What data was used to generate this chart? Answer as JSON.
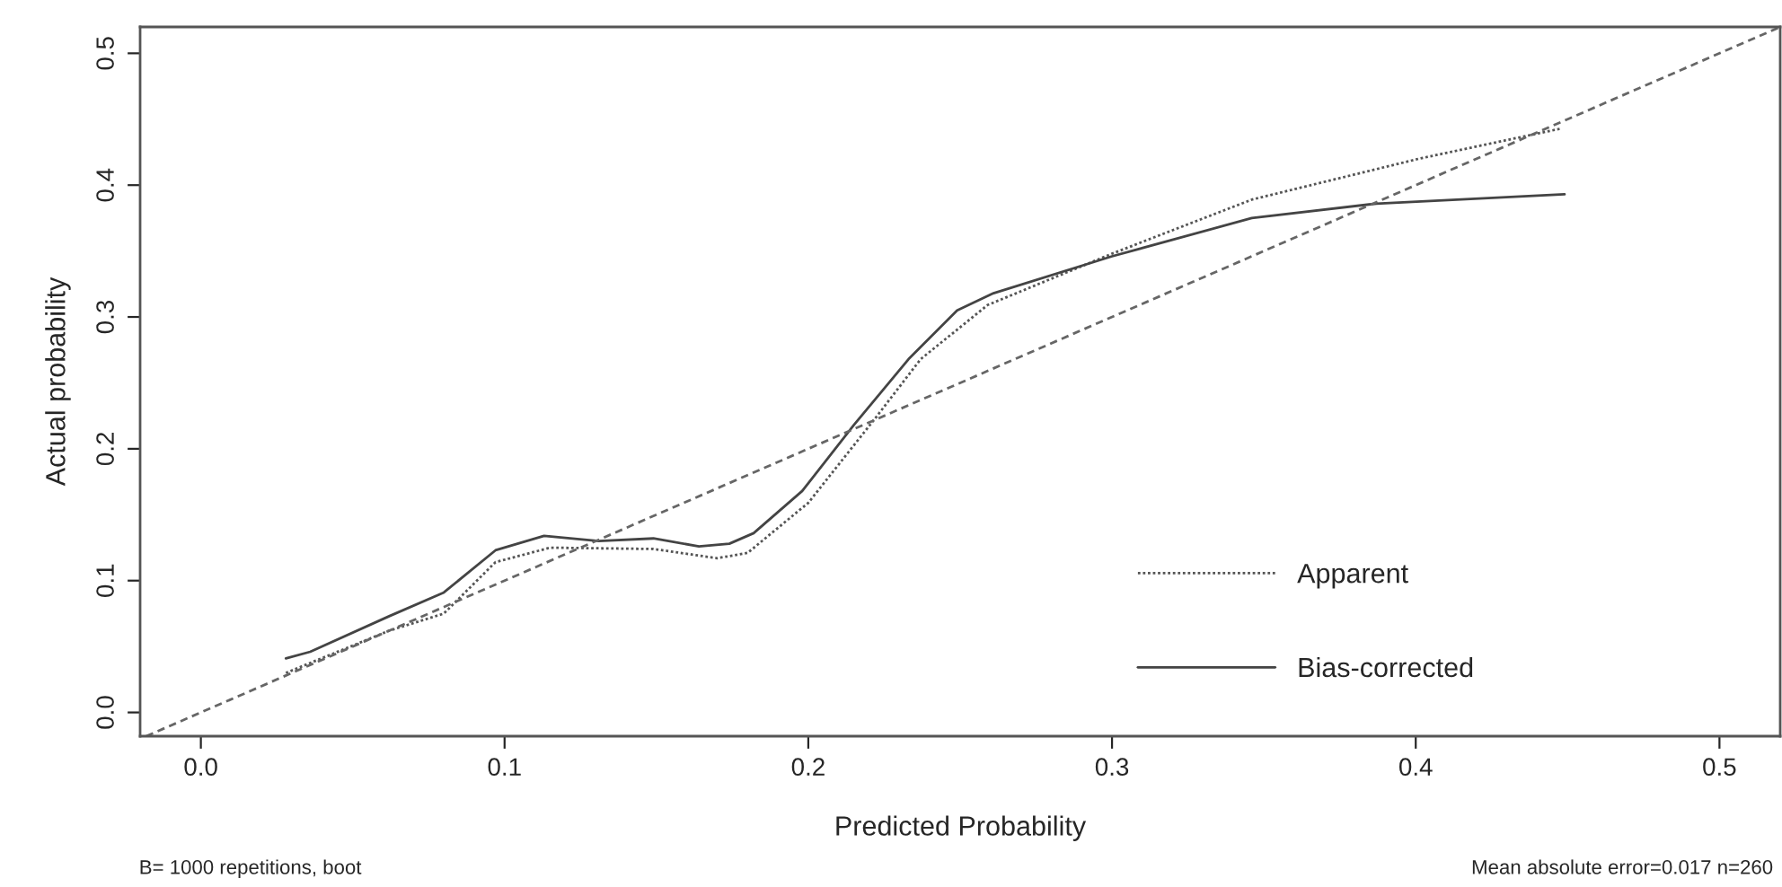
{
  "chart_data": {
    "type": "line",
    "xlabel": "Predicted Probability",
    "ylabel": "Actual probability",
    "xlim": [
      -0.02,
      0.52
    ],
    "ylim": [
      -0.018,
      0.52
    ],
    "xticks": [
      {
        "value": 0,
        "label": "0.0"
      },
      0.1,
      0.2,
      0.3,
      0.4,
      0.5
    ],
    "yticks": [
      {
        "value": 0,
        "label": "0.0"
      },
      0.1,
      0.2,
      0.3,
      0.4,
      0.5
    ],
    "grid": false,
    "legend": "bottom right",
    "marker": "none",
    "series": [
      {
        "name": "Apparent",
        "color": "#555555",
        "line_style": "dotted",
        "x": [
          0.028,
          0.062,
          0.08,
          0.097,
          0.115,
          0.149,
          0.17,
          0.18,
          0.2,
          0.222,
          0.237,
          0.259,
          0.3,
          0.346,
          0.401,
          0.448
        ],
        "values": [
          0.03,
          0.062,
          0.075,
          0.114,
          0.125,
          0.124,
          0.117,
          0.121,
          0.159,
          0.223,
          0.268,
          0.309,
          0.348,
          0.389,
          0.42,
          0.443
        ]
      },
      {
        "name": "Bias-corrected",
        "color": "#444444",
        "line_style": "solid",
        "x": [
          0.028,
          0.036,
          0.062,
          0.08,
          0.097,
          0.113,
          0.131,
          0.149,
          0.164,
          0.174,
          0.182,
          0.198,
          0.215,
          0.233,
          0.249,
          0.261,
          0.3,
          0.346,
          0.387,
          0.449
        ],
        "values": [
          0.041,
          0.046,
          0.073,
          0.091,
          0.123,
          0.134,
          0.13,
          0.132,
          0.126,
          0.128,
          0.136,
          0.168,
          0.218,
          0.268,
          0.305,
          0.318,
          0.346,
          0.375,
          0.386,
          0.393
        ]
      },
      {
        "color": "#666666",
        "line_style": "dashed",
        "x": [
          -0.018,
          0.52
        ],
        "values": [
          -0.018,
          0.52
        ]
      }
    ],
    "annotations": [
      "B= 1000 repetitions, boot",
      "Mean absolute error=0.017 n=260"
    ]
  }
}
